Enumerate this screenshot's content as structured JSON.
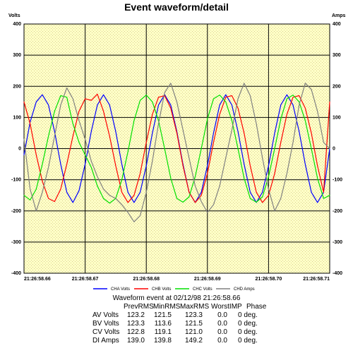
{
  "chart_data": {
    "type": "line",
    "title": "Event waveform/detail",
    "ylabel_left": "Volts",
    "ylabel_right": "Amps",
    "ylim": [
      -400,
      400
    ],
    "y_ticks": [
      "400",
      "300",
      "200",
      "100",
      "0",
      "-100",
      "-200",
      "-300",
      "-400"
    ],
    "x_ticks": [
      "21:26:58.66",
      "21:26:58.67",
      "21:26:58.68",
      "21:26:58.69",
      "21:26:58.70",
      "21:26:58.71"
    ],
    "grid": true,
    "legend_position": "bottom",
    "series": [
      {
        "name": "CHA Volts",
        "color": "#0000ff",
        "x": [
          0,
          1,
          2,
          3,
          4,
          5,
          6,
          7,
          8,
          9,
          10,
          11,
          12,
          13,
          14,
          15,
          16,
          17,
          18,
          19,
          20,
          21,
          22,
          23,
          24,
          25,
          26,
          27,
          28,
          29,
          30,
          31,
          32,
          33,
          34,
          35,
          36,
          37,
          38,
          39,
          40,
          41,
          42,
          43,
          44,
          45,
          46,
          47,
          48,
          49,
          50
        ],
        "y": [
          -20,
          85,
          150,
          173,
          140,
          55,
          -50,
          -140,
          -173,
          -135,
          -50,
          55,
          140,
          173,
          140,
          55,
          -50,
          -140,
          -173,
          -140,
          -55,
          50,
          140,
          173,
          140,
          55,
          -50,
          -140,
          -173,
          -140,
          -55,
          50,
          140,
          173,
          140,
          55,
          -50,
          -140,
          -173,
          -140,
          -55,
          50,
          140,
          173,
          140,
          55,
          -50,
          -140,
          -173,
          -140,
          0
        ]
      },
      {
        "name": "CHB Volts",
        "color": "#ff0000",
        "x": [
          0,
          1,
          2,
          3,
          4,
          5,
          6,
          7,
          8,
          9,
          10,
          11,
          12,
          13,
          14,
          15,
          16,
          17,
          18,
          19,
          20,
          21,
          22,
          23,
          24,
          25,
          26,
          27,
          28,
          29,
          30,
          31,
          32,
          33,
          34,
          35,
          36,
          37,
          38,
          39,
          40,
          41,
          42,
          43,
          44,
          45,
          46,
          47,
          48,
          49,
          50
        ],
        "y": [
          150,
          80,
          -20,
          -105,
          -160,
          -170,
          -130,
          -50,
          40,
          120,
          160,
          155,
          175,
          120,
          40,
          -55,
          -140,
          -173,
          -150,
          -80,
          20,
          110,
          165,
          170,
          130,
          50,
          -55,
          -140,
          -173,
          -150,
          -80,
          20,
          110,
          165,
          170,
          130,
          50,
          -55,
          -140,
          -173,
          -150,
          -80,
          20,
          110,
          165,
          170,
          130,
          50,
          -55,
          -140,
          150
        ]
      },
      {
        "name": "CHC Volts",
        "color": "#00e000",
        "x": [
          0,
          1,
          2,
          3,
          4,
          5,
          6,
          7,
          8,
          9,
          10,
          11,
          12,
          13,
          14,
          15,
          16,
          17,
          18,
          19,
          20,
          21,
          22,
          23,
          24,
          25,
          26,
          27,
          28,
          29,
          30,
          31,
          32,
          33,
          34,
          35,
          36,
          37,
          38,
          39,
          40,
          41,
          42,
          43,
          44,
          45,
          46,
          47,
          48,
          49,
          50
        ],
        "y": [
          -150,
          -165,
          -130,
          -50,
          40,
          120,
          170,
          165,
          80,
          20,
          -20,
          -60,
          -120,
          -160,
          -175,
          -160,
          -100,
          -10,
          90,
          155,
          172,
          150,
          90,
          0,
          -95,
          -160,
          -172,
          -155,
          -90,
          0,
          95,
          160,
          172,
          150,
          90,
          0,
          -95,
          -160,
          -172,
          -155,
          -90,
          0,
          95,
          160,
          172,
          150,
          90,
          0,
          -95,
          -160,
          -150
        ]
      },
      {
        "name": "CHD Amps",
        "color": "#808080",
        "x": [
          0,
          1,
          2,
          3,
          4,
          5,
          6,
          7,
          8,
          9,
          10,
          11,
          12,
          13,
          14,
          15,
          16,
          17,
          18,
          19,
          20,
          21,
          22,
          23,
          24,
          25,
          26,
          27,
          28,
          29,
          30,
          31,
          32,
          33,
          34,
          35,
          36,
          37,
          38,
          39,
          40,
          41,
          42,
          43,
          44,
          45,
          46,
          47,
          48,
          49,
          50
        ],
        "y": [
          30,
          -130,
          -200,
          -140,
          -60,
          40,
          140,
          195,
          160,
          90,
          30,
          -40,
          -90,
          -130,
          -150,
          -160,
          -180,
          -205,
          -235,
          -215,
          -140,
          -40,
          80,
          180,
          210,
          150,
          60,
          -30,
          -120,
          -170,
          -205,
          -180,
          -120,
          -30,
          60,
          160,
          210,
          170,
          80,
          -30,
          -130,
          -200,
          -160,
          -80,
          20,
          140,
          210,
          190,
          120,
          20,
          0
        ]
      }
    ]
  },
  "summary": {
    "caption": "Waveform event at 02/12/98 21:26:58.66",
    "headers": [
      "PrevRMS",
      "MinRMS",
      "MaxRMS",
      "WorstIMP",
      "Phase"
    ],
    "rows": [
      {
        "label": "AV Volts",
        "prev": "123.2",
        "min": "121.5",
        "max": "123.3",
        "worst": "0.0",
        "phase": "0 deg."
      },
      {
        "label": "BV Volts",
        "prev": "123.3",
        "min": "113.6",
        "max": "121.5",
        "worst": "0.0",
        "phase": "0 deg."
      },
      {
        "label": "CV Volts",
        "prev": "122.8",
        "min": "119.1",
        "max": "121.0",
        "worst": "0.0",
        "phase": "0 deg."
      },
      {
        "label": "DI Amps",
        "prev": "139.0",
        "min": "139.8",
        "max": "149.2",
        "worst": "0.0",
        "phase": "0 deg."
      }
    ]
  }
}
